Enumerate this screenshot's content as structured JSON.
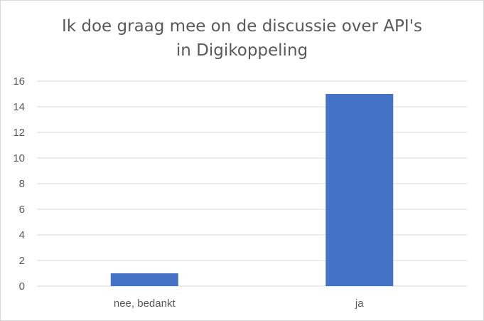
{
  "chart_data": {
    "type": "bar",
    "title_lines": [
      "Ik doe graag mee on de discussie over API's",
      "in Digikoppeling"
    ],
    "categories": [
      "nee, bedankt",
      "ja"
    ],
    "values": [
      1,
      15
    ],
    "xlabel": "",
    "ylabel": "",
    "ylim": [
      0,
      16
    ],
    "yticks": [
      0,
      2,
      4,
      6,
      8,
      10,
      12,
      14,
      16
    ],
    "grid": true,
    "legend": "none",
    "bar_color": "#4472c4",
    "grid_color": "#d9d9d9"
  }
}
